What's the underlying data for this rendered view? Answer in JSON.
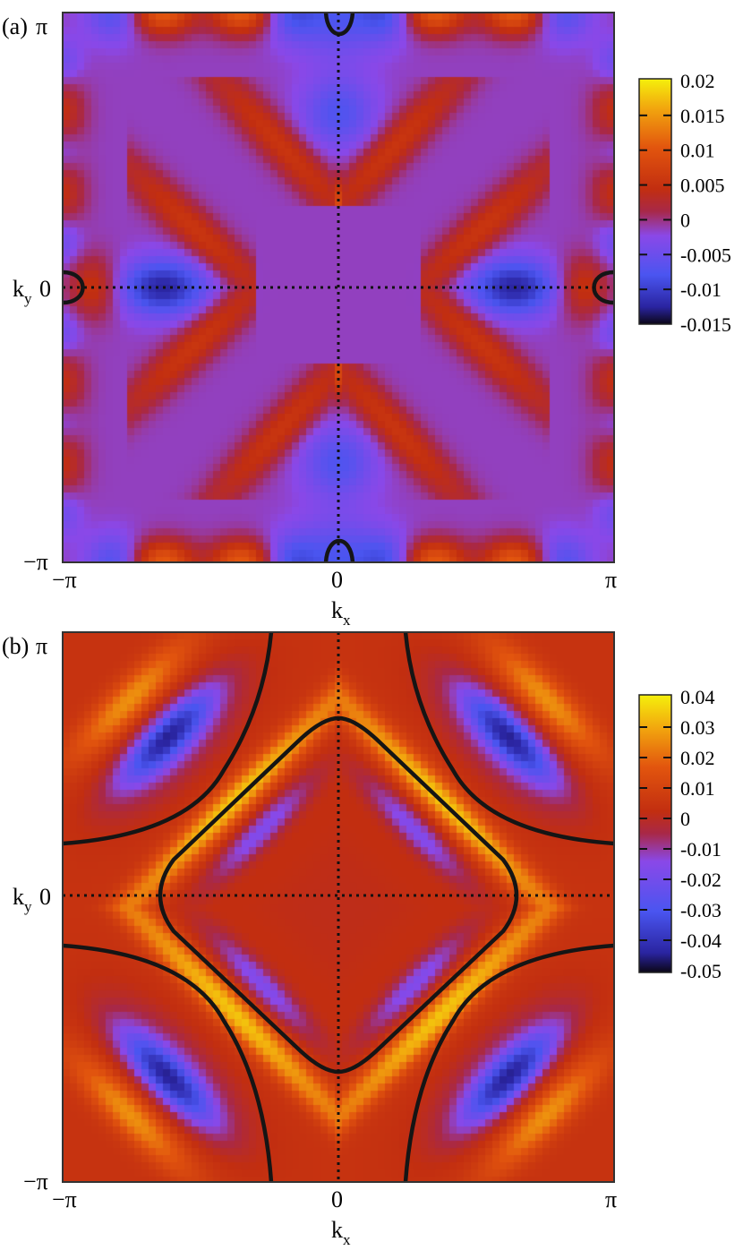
{
  "chart_data": [
    {
      "type": "heatmap",
      "panel_label": "(a)",
      "xlabel": "k",
      "xlabel_sub": "x",
      "ylabel": "k",
      "ylabel_sub": "y",
      "xlim": [
        -3.14159,
        3.14159
      ],
      "ylim": [
        -3.14159,
        3.14159
      ],
      "x_ticks": [
        {
          "value": -3.14159,
          "label": "−π"
        },
        {
          "value": 0,
          "label": "0"
        },
        {
          "value": 3.14159,
          "label": "π"
        }
      ],
      "y_ticks": [
        {
          "value": 3.14159,
          "label": "π"
        },
        {
          "value": 0,
          "label": "0"
        },
        {
          "value": -3.14159,
          "label": "−π"
        }
      ],
      "colorbar": {
        "range": [
          -0.015,
          0.02
        ],
        "ticks": [
          "0.02",
          "0.015",
          "0.01",
          "0.005",
          "0",
          "-0.005",
          "-0.01",
          "-0.015"
        ],
        "colors": [
          "#0b0616",
          "#2a24a0",
          "#4a55f0",
          "#8a48e8",
          "#a82848",
          "#c22e10",
          "#e2550e",
          "#f2a60e",
          "#f5f00c"
        ]
      },
      "guide_lines": [
        "kx=0",
        "ky=0"
      ],
      "zero_contours": [
        "closed loops at (0, ±π) and (±π, 0)"
      ]
    },
    {
      "type": "heatmap",
      "panel_label": "(b)",
      "xlabel": "k",
      "xlabel_sub": "x",
      "ylabel": "k",
      "ylabel_sub": "y",
      "xlim": [
        -3.14159,
        3.14159
      ],
      "ylim": [
        -3.14159,
        3.14159
      ],
      "x_ticks": [
        {
          "value": -3.14159,
          "label": "−π"
        },
        {
          "value": 0,
          "label": "0"
        },
        {
          "value": 3.14159,
          "label": "π"
        }
      ],
      "y_ticks": [
        {
          "value": 3.14159,
          "label": "π"
        },
        {
          "value": 0,
          "label": "0"
        },
        {
          "value": -3.14159,
          "label": "−π"
        }
      ],
      "colorbar": {
        "range": [
          -0.05,
          0.04
        ],
        "ticks": [
          "0.04",
          "0.03",
          "0.02",
          "0.01",
          "0",
          "-0.01",
          "-0.02",
          "-0.03",
          "-0.04",
          "-0.05"
        ],
        "colors": [
          "#0b0616",
          "#2a24a0",
          "#4a55f0",
          "#8a48e8",
          "#a82848",
          "#c22e10",
          "#e2550e",
          "#f2a60e",
          "#f5f00c"
        ]
      },
      "guide_lines": [
        "kx=0",
        "ky=0"
      ],
      "zero_contours": [
        "diamond through (±2.1, 0) and (0, ±2.1)",
        "corner arcs near (±π, ±π)"
      ]
    }
  ]
}
